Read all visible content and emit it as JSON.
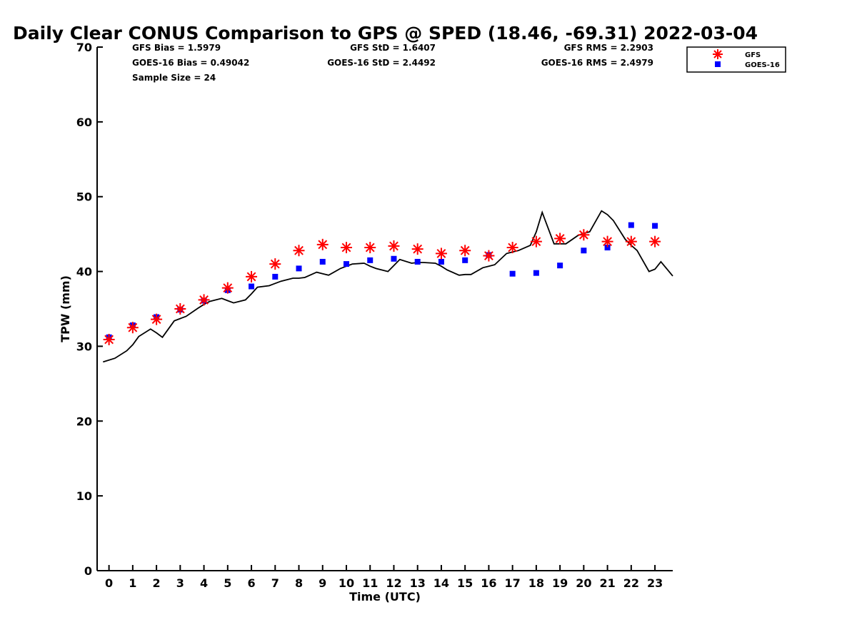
{
  "chart_data": {
    "type": "scatter",
    "title": "Daily Clear CONUS Comparison to GPS @ SPED (18.46, -69.31) 2022-03-04",
    "xlabel": "Time (UTC)",
    "ylabel": "TPW (mm)",
    "xlim": [
      -0.5,
      23.75
    ],
    "ylim": [
      0,
      70
    ],
    "xticks": [
      0,
      1,
      2,
      3,
      4,
      5,
      6,
      7,
      8,
      9,
      10,
      11,
      12,
      13,
      14,
      15,
      16,
      17,
      18,
      19,
      20,
      21,
      22,
      23
    ],
    "yticks": [
      0,
      10,
      20,
      30,
      40,
      50,
      60,
      70
    ],
    "stats": {
      "gfs_bias": "GFS Bias = 1.5979",
      "gfs_std": "GFS StD = 1.6407",
      "gfs_rms": "GFS RMS = 2.2903",
      "goes_bias": "GOES-16 Bias = 0.49042",
      "goes_std": "GOES-16 StD = 2.4492",
      "goes_rms": "GOES-16 RMS = 2.4979",
      "sample_size": "Sample Size = 24"
    },
    "legend": {
      "position": "top-right, outside plot",
      "entries": [
        "GFS",
        "GOES-16"
      ]
    },
    "series": [
      {
        "name": "GFS",
        "marker": "asterisk",
        "color": "#ff0000",
        "x": [
          0,
          1,
          2,
          3,
          4,
          5,
          6,
          7,
          8,
          9,
          10,
          11,
          12,
          13,
          14,
          15,
          16,
          17,
          18,
          19,
          20,
          21,
          22,
          23
        ],
        "values": [
          30.9,
          32.5,
          33.6,
          35.0,
          36.2,
          37.8,
          39.3,
          41.0,
          42.8,
          43.6,
          43.2,
          43.2,
          43.4,
          43.0,
          42.4,
          42.8,
          42.1,
          43.2,
          44.0,
          44.4,
          44.9,
          44.0,
          44.0,
          44.0
        ]
      },
      {
        "name": "GOES-16",
        "marker": "square",
        "color": "#0000ff",
        "x": [
          0,
          1,
          2,
          3,
          4,
          5,
          6,
          7,
          8,
          9,
          10,
          11,
          12,
          13,
          14,
          15,
          16,
          17,
          18,
          19,
          20,
          21,
          22,
          23
        ],
        "values": [
          31.2,
          32.8,
          33.9,
          34.9,
          36.1,
          37.5,
          38.0,
          39.3,
          40.4,
          41.3,
          41.0,
          41.5,
          41.7,
          41.3,
          41.3,
          41.5,
          42.2,
          39.7,
          39.8,
          40.8,
          42.8,
          43.2,
          46.2,
          46.1
        ]
      },
      {
        "name": "GPS",
        "marker": "line",
        "color": "#000000",
        "x": [
          -0.25,
          0.25,
          0.75,
          1.0,
          1.25,
          1.75,
          2.0,
          2.25,
          2.75,
          3.0,
          3.25,
          3.75,
          4.0,
          4.25,
          4.75,
          5.0,
          5.25,
          5.75,
          6.0,
          6.25,
          6.75,
          7.0,
          7.25,
          7.75,
          8.0,
          8.25,
          8.75,
          9.0,
          9.25,
          9.75,
          10.0,
          10.25,
          10.75,
          11.0,
          11.25,
          11.75,
          12.0,
          12.25,
          12.75,
          13.0,
          13.25,
          13.75,
          14.0,
          14.25,
          14.75,
          15.0,
          15.25,
          15.75,
          16.0,
          16.25,
          16.75,
          17.0,
          17.25,
          17.75,
          18.0,
          18.25,
          18.75,
          19.0,
          19.25,
          19.75,
          20.0,
          20.25,
          20.75,
          21.0,
          21.25,
          21.75,
          22.0,
          22.25,
          22.75,
          23.0,
          23.25,
          23.75
        ],
        "values": [
          27.9,
          28.4,
          29.4,
          30.2,
          31.3,
          32.3,
          31.8,
          31.2,
          33.4,
          33.7,
          34.0,
          35.1,
          35.6,
          36.0,
          36.4,
          36.1,
          35.8,
          36.2,
          37.0,
          37.9,
          38.1,
          38.4,
          38.7,
          39.1,
          39.1,
          39.2,
          39.9,
          39.7,
          39.5,
          40.4,
          40.7,
          41.0,
          41.1,
          40.7,
          40.4,
          40.0,
          40.8,
          41.6,
          41.1,
          41.2,
          41.2,
          41.1,
          40.7,
          40.2,
          39.5,
          39.6,
          39.6,
          40.5,
          40.7,
          40.9,
          42.4,
          42.6,
          42.8,
          43.5,
          45.3,
          47.9,
          43.7,
          43.7,
          43.7,
          44.8,
          45.1,
          45.3,
          48.1,
          47.6,
          46.8,
          44.3,
          43.5,
          42.8,
          40.0,
          40.3,
          41.3,
          39.4
        ]
      }
    ]
  }
}
